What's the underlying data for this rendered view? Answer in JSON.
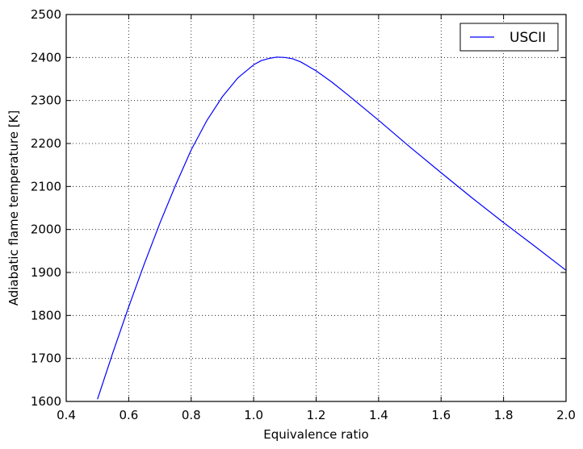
{
  "chart_data": {
    "type": "line",
    "title": "",
    "xlabel": "Equivalence ratio",
    "ylabel": "Adiabatic flame temperature [K]",
    "xlim": [
      0.4,
      2.0
    ],
    "ylim": [
      1600,
      2500
    ],
    "xticks": [
      "0.4",
      "0.6",
      "0.8",
      "1.0",
      "1.2",
      "1.4",
      "1.6",
      "1.8",
      "2.0"
    ],
    "yticks": [
      "1600",
      "1700",
      "1800",
      "1900",
      "2000",
      "2100",
      "2200",
      "2300",
      "2400",
      "2500"
    ],
    "grid": true,
    "legend_position": "top-right",
    "series": [
      {
        "name": "USCII",
        "color": "#0000ff",
        "x": [
          0.5,
          0.55,
          0.6,
          0.65,
          0.7,
          0.75,
          0.8,
          0.85,
          0.9,
          0.95,
          1.0,
          1.025,
          1.05,
          1.075,
          1.1,
          1.125,
          1.15,
          1.2,
          1.25,
          1.3,
          1.35,
          1.4,
          1.5,
          1.6,
          1.7,
          1.8,
          1.9,
          2.0
        ],
        "y": [
          1605,
          1715,
          1820,
          1920,
          2015,
          2103,
          2185,
          2253,
          2309,
          2353,
          2383,
          2393,
          2398,
          2401,
          2400,
          2397,
          2390,
          2369,
          2343,
          2314,
          2284,
          2254,
          2192,
          2132,
          2073,
          2016,
          1961,
          1905
        ]
      }
    ]
  }
}
